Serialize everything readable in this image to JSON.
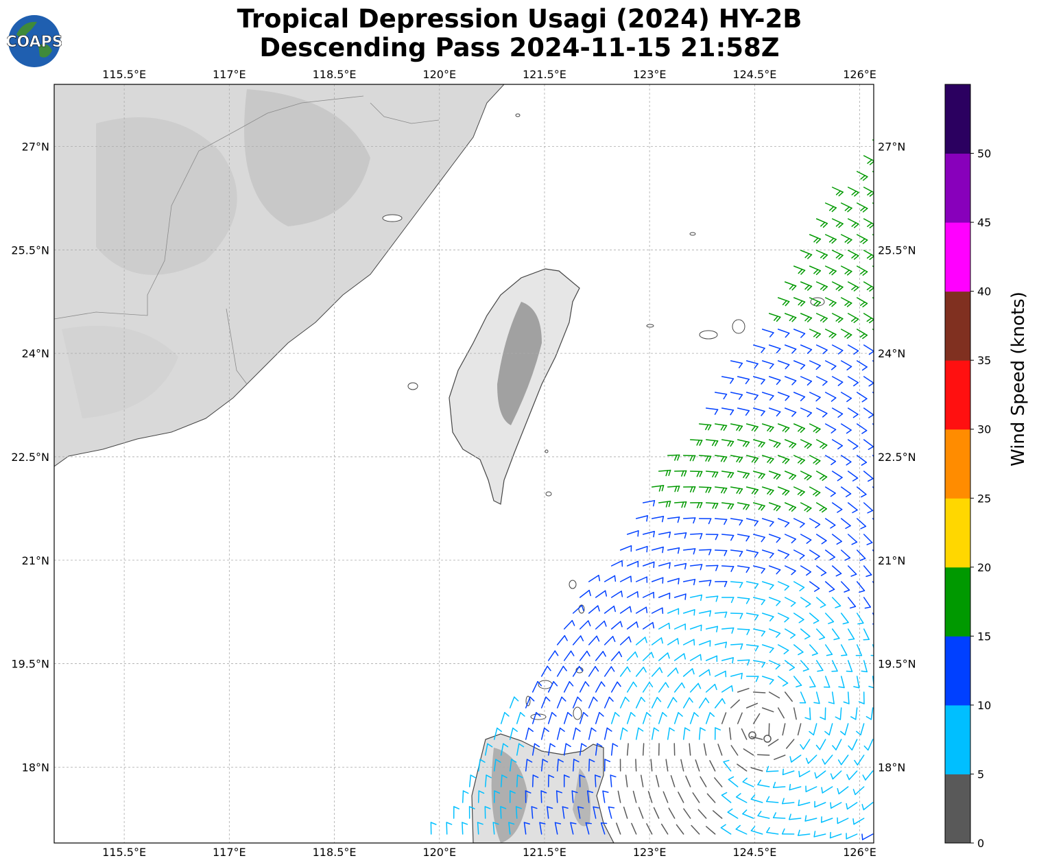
{
  "title_line1": "Tropical Depression Usagi (2024) HY-2B",
  "title_line2": "Descending Pass 2024-11-15 21:58Z",
  "logo_text": "COAPS",
  "map": {
    "lon_range": [
      114.5,
      126.2
    ],
    "lat_range": [
      16.9,
      27.9
    ],
    "lon_ticks": [
      "115.5°E",
      "117°E",
      "118.5°E",
      "120°E",
      "121.5°E",
      "123°E",
      "124.5°E",
      "126°E"
    ],
    "lon_tick_values": [
      115.5,
      117,
      118.5,
      120,
      121.5,
      123,
      124.5,
      126
    ],
    "lat_ticks": [
      "27°N",
      "25.5°N",
      "24°N",
      "22.5°N",
      "21°N",
      "19.5°N",
      "18°N"
    ],
    "lat_tick_values": [
      27,
      25.5,
      24,
      22.5,
      21,
      19.5,
      18
    ],
    "storm_center": [
      124.6,
      18.6
    ]
  },
  "colorbar": {
    "label": "Wind Speed (knots)",
    "ticks": [
      "0",
      "5",
      "10",
      "15",
      "20",
      "25",
      "30",
      "35",
      "40",
      "45",
      "50"
    ],
    "colors": [
      "#595959",
      "#00bfff",
      "#0040ff",
      "#009900",
      "#ffd700",
      "#ff8c00",
      "#ff1010",
      "#803020",
      "#ff00ff",
      "#8800bb",
      "#2b0060"
    ]
  }
}
